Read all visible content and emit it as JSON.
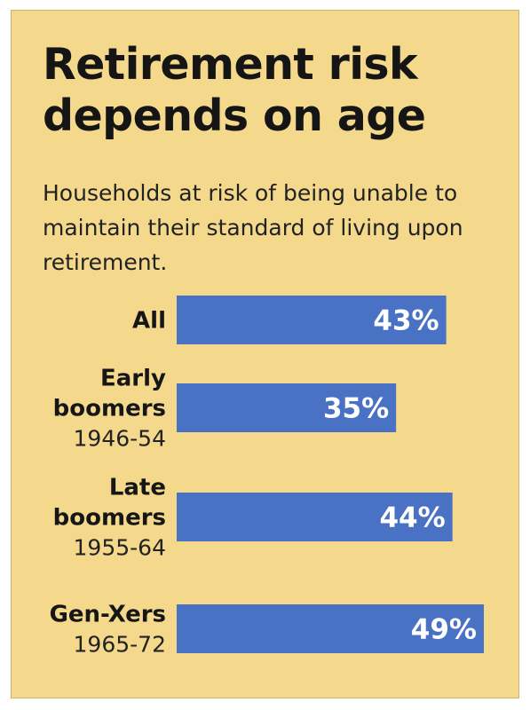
{
  "colors": {
    "background": "#f4d98c",
    "bar": "#4a72c4",
    "value_text": "#ffffff",
    "text": "#161616"
  },
  "chart_data": {
    "type": "bar",
    "orientation": "horizontal",
    "title": "Retirement risk depends on age",
    "subtitle": "Households at risk of being unable to maintain their standard of living upon retirement.",
    "categories": [
      {
        "name_lines": [
          "All"
        ],
        "years": ""
      },
      {
        "name_lines": [
          "Early",
          "boomers"
        ],
        "years": "1946-54"
      },
      {
        "name_lines": [
          "Late",
          "boomers"
        ],
        "years": "1955-64"
      },
      {
        "name_lines": [
          "Gen-Xers"
        ],
        "years": "1965-72"
      }
    ],
    "values": [
      43,
      35,
      44,
      49
    ],
    "value_labels": [
      "43%",
      "35%",
      "44%",
      "49%"
    ],
    "unit": "%",
    "xlim": [
      0,
      49
    ],
    "grid": false,
    "legend": "none"
  }
}
